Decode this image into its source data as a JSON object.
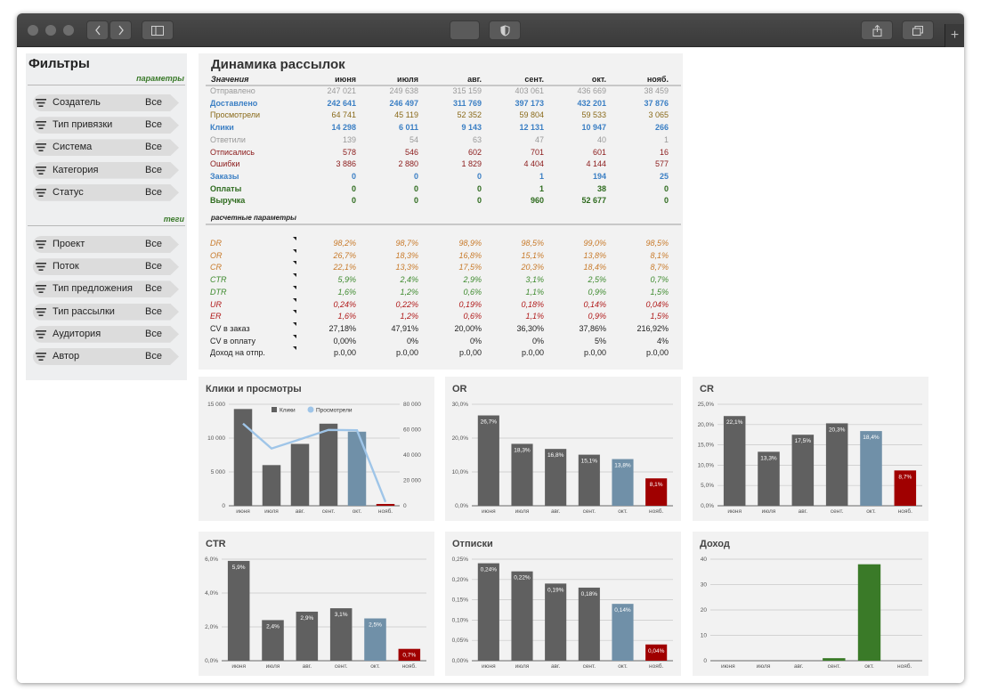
{
  "sidebar": {
    "title": "Фильтры",
    "section_params": "параметры",
    "section_tags": "теги",
    "params": [
      {
        "label": "Создатель",
        "value": "Все"
      },
      {
        "label": "Тип привязки",
        "value": "Все"
      },
      {
        "label": "Система",
        "value": "Все"
      },
      {
        "label": "Категория",
        "value": "Все"
      },
      {
        "label": "Статус",
        "value": "Все"
      }
    ],
    "tags": [
      {
        "label": "Проект",
        "value": "Все"
      },
      {
        "label": "Поток",
        "value": "Все"
      },
      {
        "label": "Тип предложения",
        "value": "Все"
      },
      {
        "label": "Тип рассылки",
        "value": "Все"
      },
      {
        "label": "Аудитория",
        "value": "Все"
      },
      {
        "label": "Автор",
        "value": "Все"
      }
    ]
  },
  "table": {
    "title": "Динамика рассылок",
    "values_header": "Значения",
    "calc_header": "расчетные параметры",
    "months": [
      "июня",
      "июля",
      "авг.",
      "сент.",
      "окт.",
      "нояб."
    ],
    "rows": [
      {
        "label": "Отправлено",
        "color": "#9a9a9a",
        "bold": false,
        "cells": [
          "247 021",
          "249 638",
          "315 159",
          "403 061",
          "436 669",
          "38 459"
        ]
      },
      {
        "label": "Доставлено",
        "color": "#3b7fc4",
        "bold": true,
        "cells": [
          "242 641",
          "246 497",
          "311 769",
          "397 173",
          "432 201",
          "37 876"
        ]
      },
      {
        "label": "Просмотрели",
        "color": "#8a6a1a",
        "bold": false,
        "cells": [
          "64 741",
          "45 119",
          "52 352",
          "59 804",
          "59 533",
          "3 065"
        ]
      },
      {
        "label": "Клики",
        "color": "#3b7fc4",
        "bold": true,
        "cells": [
          "14 298",
          "6 011",
          "9 143",
          "12 131",
          "10 947",
          "266"
        ]
      },
      {
        "label": "Ответили",
        "color": "#9a9a9a",
        "bold": false,
        "cells": [
          "139",
          "54",
          "63",
          "47",
          "40",
          "1"
        ]
      },
      {
        "label": "Отписались",
        "color": "#8b1a1a",
        "bold": false,
        "cells": [
          "578",
          "546",
          "602",
          "701",
          "601",
          "16"
        ]
      },
      {
        "label": "Ошибки",
        "color": "#8b1a1a",
        "bold": false,
        "cells": [
          "3 886",
          "2 880",
          "1 829",
          "4 404",
          "4 144",
          "577"
        ]
      },
      {
        "label": "Заказы",
        "color": "#3b7fc4",
        "bold": true,
        "cells": [
          "0",
          "0",
          "0",
          "1",
          "194",
          "25"
        ]
      },
      {
        "label": "Оплаты",
        "color": "#2e6b1e",
        "bold": true,
        "cells": [
          "0",
          "0",
          "0",
          "1",
          "38",
          "0"
        ]
      },
      {
        "label": "Выручка",
        "color": "#2e6b1e",
        "bold": true,
        "cells": [
          "0",
          "0",
          "0",
          "960",
          "52 677",
          "0"
        ]
      }
    ],
    "calc_rows": [
      {
        "label": "DR",
        "color": "#c87a2a",
        "italic": true,
        "cells": [
          "98,2%",
          "98,7%",
          "98,9%",
          "98,5%",
          "99,0%",
          "98,5%"
        ]
      },
      {
        "label": "OR",
        "color": "#c87a2a",
        "italic": true,
        "cells": [
          "26,7%",
          "18,3%",
          "16,8%",
          "15,1%",
          "13,8%",
          "8,1%"
        ]
      },
      {
        "label": "CR",
        "color": "#c87a2a",
        "italic": true,
        "cells": [
          "22,1%",
          "13,3%",
          "17,5%",
          "20,3%",
          "18,4%",
          "8,7%"
        ]
      },
      {
        "label": "CTR",
        "color": "#3e8a2e",
        "italic": true,
        "cells": [
          "5,9%",
          "2,4%",
          "2,9%",
          "3,1%",
          "2,5%",
          "0,7%"
        ]
      },
      {
        "label": "DTR",
        "color": "#3e8a2e",
        "italic": true,
        "cells": [
          "1,6%",
          "1,2%",
          "0,6%",
          "1,1%",
          "0,9%",
          "1,5%"
        ]
      },
      {
        "label": "UR",
        "color": "#b01a1a",
        "italic": true,
        "cells": [
          "0,24%",
          "0,22%",
          "0,19%",
          "0,18%",
          "0,14%",
          "0,04%"
        ]
      },
      {
        "label": "ER",
        "color": "#b01a1a",
        "italic": true,
        "cells": [
          "1,6%",
          "1,2%",
          "0,6%",
          "1,1%",
          "0,9%",
          "1,5%"
        ]
      },
      {
        "label": "CV в заказ",
        "color": "#222222",
        "italic": false,
        "cells": [
          "27,18%",
          "47,91%",
          "20,00%",
          "36,30%",
          "37,86%",
          "216,92%"
        ]
      },
      {
        "label": "CV в оплату",
        "color": "#222222",
        "italic": false,
        "cells": [
          "0,00%",
          "0%",
          "0%",
          "0%",
          "5%",
          "4%"
        ]
      },
      {
        "label": "Доход на отпр.",
        "color": "#222222",
        "italic": false,
        "cells": [
          "р.0,00",
          "р.0,00",
          "р.0,00",
          "р.0,00",
          "р.0,00",
          "р.0,00"
        ]
      }
    ]
  },
  "chart_data": [
    {
      "id": "clicks",
      "type": "bar",
      "title": "Клики и просмотры",
      "categories": [
        "июня",
        "июля",
        "авг.",
        "сент.",
        "окт.",
        "нояб."
      ],
      "series": [
        {
          "name": "Клики",
          "type": "bar",
          "axis": "left",
          "values": [
            14298,
            6011,
            9143,
            12131,
            10947,
            266
          ]
        },
        {
          "name": "Просмотрели",
          "type": "line",
          "axis": "right",
          "values": [
            64741,
            45119,
            52352,
            59804,
            59533,
            3065
          ]
        }
      ],
      "yticks_left": [
        "0",
        "5 000",
        "10 000",
        "15 000"
      ],
      "ylim_left": [
        0,
        15000
      ],
      "yticks_right": [
        "0",
        "20 000",
        "40 000",
        "60 000",
        "80 000"
      ],
      "ylim_right": [
        0,
        80000
      ],
      "bar_colors": [
        "#606060",
        "#606060",
        "#606060",
        "#606060",
        "#7090a8",
        "#a00000"
      ],
      "line_color": "#9fc5e8",
      "legend": "top"
    },
    {
      "id": "or",
      "type": "bar",
      "title": "OR",
      "categories": [
        "июня",
        "июля",
        "авг.",
        "сент.",
        "окт.",
        "нояб."
      ],
      "values": [
        26.7,
        18.3,
        16.8,
        15.1,
        13.8,
        8.1
      ],
      "labels": [
        "26,7%",
        "18,3%",
        "16,8%",
        "15,1%",
        "13,8%",
        "8,1%"
      ],
      "yticks": [
        "0,0%",
        "10,0%",
        "20,0%",
        "30,0%"
      ],
      "ylim": [
        0,
        30
      ],
      "bar_colors": [
        "#606060",
        "#606060",
        "#606060",
        "#606060",
        "#7090a8",
        "#a00000"
      ]
    },
    {
      "id": "cr",
      "type": "bar",
      "title": "CR",
      "categories": [
        "июня",
        "июля",
        "авг.",
        "сент.",
        "окт.",
        "нояб."
      ],
      "values": [
        22.1,
        13.3,
        17.5,
        20.3,
        18.4,
        8.7
      ],
      "labels": [
        "22,1%",
        "13,3%",
        "17,5%",
        "20,3%",
        "18,4%",
        "8,7%"
      ],
      "yticks": [
        "0,0%",
        "5,0%",
        "10,0%",
        "15,0%",
        "20,0%",
        "25,0%"
      ],
      "ylim": [
        0,
        25
      ],
      "bar_colors": [
        "#606060",
        "#606060",
        "#606060",
        "#606060",
        "#7090a8",
        "#a00000"
      ]
    },
    {
      "id": "ctr",
      "type": "bar",
      "title": "CTR",
      "categories": [
        "июня",
        "июля",
        "авг.",
        "сент.",
        "окт.",
        "нояб."
      ],
      "values": [
        5.9,
        2.4,
        2.9,
        3.1,
        2.5,
        0.7
      ],
      "labels": [
        "5,9%",
        "2,4%",
        "2,9%",
        "3,1%",
        "2,5%",
        "0,7%"
      ],
      "yticks": [
        "0,0%",
        "2,0%",
        "4,0%",
        "6,0%"
      ],
      "ylim": [
        0,
        6
      ],
      "bar_colors": [
        "#606060",
        "#606060",
        "#606060",
        "#606060",
        "#7090a8",
        "#a00000"
      ]
    },
    {
      "id": "unsub",
      "type": "bar",
      "title": "Отписки",
      "categories": [
        "июня",
        "июля",
        "авг.",
        "сент.",
        "окт.",
        "нояб."
      ],
      "values": [
        0.24,
        0.22,
        0.19,
        0.18,
        0.14,
        0.04
      ],
      "labels": [
        "0,24%",
        "0,22%",
        "0,19%",
        "0,18%",
        "0,14%",
        "0,04%"
      ],
      "yticks": [
        "0,00%",
        "0,05%",
        "0,10%",
        "0,15%",
        "0,20%",
        "0,25%"
      ],
      "ylim": [
        0,
        0.25
      ],
      "bar_colors": [
        "#606060",
        "#606060",
        "#606060",
        "#606060",
        "#7090a8",
        "#a00000"
      ]
    },
    {
      "id": "income",
      "type": "bar",
      "title": "Доход",
      "categories": [
        "июня",
        "июля",
        "авг.",
        "сент.",
        "окт.",
        "нояб."
      ],
      "values": [
        0,
        0,
        0,
        1,
        38,
        0
      ],
      "labels": [
        "",
        "",
        "",
        "",
        "",
        ""
      ],
      "yticks": [
        "0",
        "10",
        "20",
        "30",
        "40"
      ],
      "ylim": [
        0,
        40
      ],
      "bar_colors": [
        "#3a7a28",
        "#3a7a28",
        "#3a7a28",
        "#3a7a28",
        "#3a7a28",
        "#3a7a28"
      ]
    }
  ]
}
